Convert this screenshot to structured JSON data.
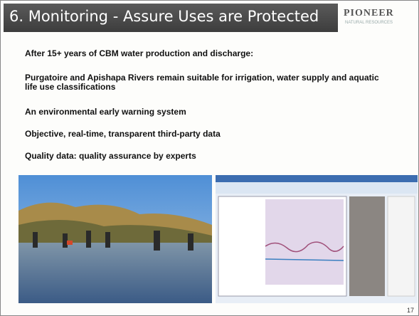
{
  "header": {
    "title": "6. Monitoring - Assure Uses are Protected",
    "logo": "PIONEER",
    "logo_subtitle": "NATURAL RESOURCES"
  },
  "bullets": [
    "After 15+ years of CBM water production and discharge:",
    "Purgatoire and Apishapa Rivers remain suitable for irrigation, water supply and aquatic life use classifications",
    "An environmental early warning system",
    "Objective, real-time, transparent third-party data",
    "Quality data: quality assurance by experts"
  ],
  "page_number": "17"
}
